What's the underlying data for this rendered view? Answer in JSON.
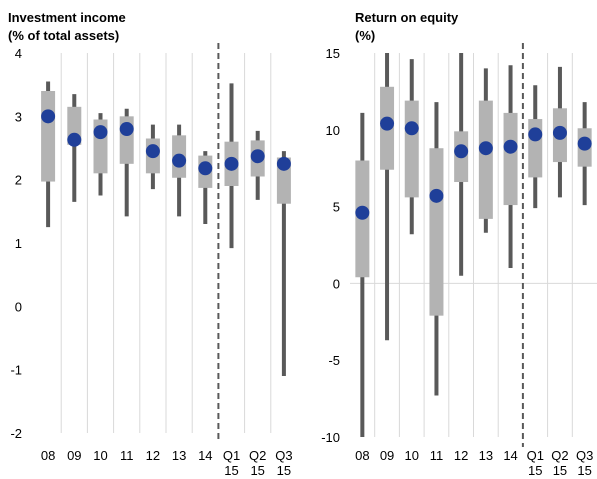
{
  "chart_data": [
    {
      "type": "range",
      "title": "Investment income",
      "subtitle": "(% of total assets)",
      "categories": [
        "08",
        "09",
        "10",
        "11",
        "12",
        "13",
        "14",
        "Q1 15",
        "Q2 15",
        "Q3 15"
      ],
      "whisker_low": [
        1.25,
        1.65,
        1.75,
        1.42,
        1.85,
        1.42,
        1.3,
        0.92,
        1.68,
        -1.1
      ],
      "whisker_high": [
        3.55,
        3.35,
        3.05,
        3.12,
        2.87,
        2.87,
        2.45,
        3.52,
        2.77,
        2.45
      ],
      "box_low": [
        1.97,
        2.55,
        2.1,
        2.25,
        2.1,
        2.03,
        1.87,
        1.9,
        2.05,
        1.62
      ],
      "box_high": [
        3.4,
        3.15,
        2.95,
        3.0,
        2.65,
        2.7,
        2.38,
        2.6,
        2.62,
        2.35
      ],
      "values": [
        3.0,
        2.63,
        2.75,
        2.8,
        2.45,
        2.3,
        2.18,
        2.25,
        2.37,
        2.25
      ],
      "whisker_color": "#595959",
      "box_color": "#b3b3b3",
      "color": "#1f3f99",
      "ylim": [
        -2,
        4
      ],
      "yticks": [
        -2,
        -1,
        0,
        1,
        2,
        3,
        4
      ],
      "zero_line": false,
      "divider_after": 6
    },
    {
      "type": "range",
      "title": "Return on equity",
      "subtitle": "(%)",
      "categories": [
        "08",
        "09",
        "10",
        "11",
        "12",
        "13",
        "14",
        "Q1 15",
        "Q2 15",
        "Q3 15"
      ],
      "whisker_low": [
        -10,
        -3.7,
        3.2,
        -7.3,
        0.5,
        3.3,
        1.0,
        4.9,
        5.6,
        5.1
      ],
      "whisker_high": [
        11.1,
        15,
        14.6,
        11.8,
        15,
        14.0,
        14.2,
        12.9,
        14.1,
        11.8
      ],
      "box_low": [
        0.4,
        7.4,
        5.6,
        -2.1,
        6.6,
        4.2,
        5.1,
        6.9,
        7.9,
        7.6
      ],
      "box_high": [
        8.0,
        12.8,
        11.9,
        8.8,
        9.9,
        11.9,
        11.1,
        10.7,
        11.4,
        10.1
      ],
      "values": [
        4.6,
        10.4,
        10.1,
        5.7,
        8.6,
        8.8,
        8.9,
        9.7,
        9.8,
        9.1
      ],
      "whisker_color": "#595959",
      "box_color": "#b3b3b3",
      "color": "#1f3f99",
      "ylim": [
        -10,
        15
      ],
      "yticks": [
        -10,
        -5,
        0,
        5,
        10,
        15
      ],
      "zero_line": true,
      "divider_after": 6
    }
  ]
}
